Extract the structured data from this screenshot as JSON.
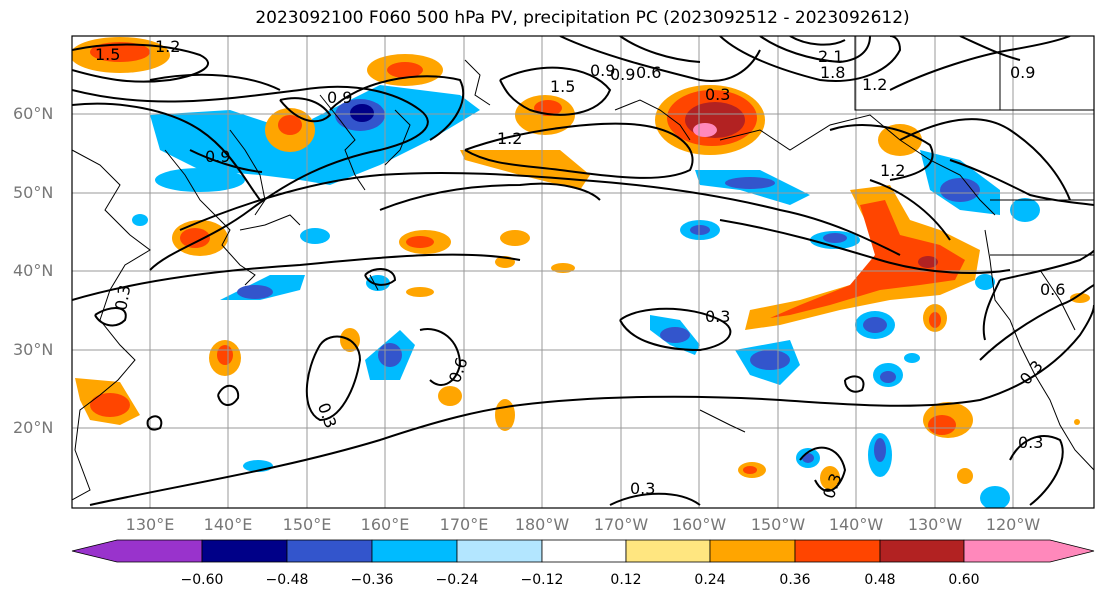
{
  "title": "2023092100 F060 500 hPa PV, precipitation PC (2023092512 - 2023092612)",
  "lat_labels": [
    "60°N",
    "50°N",
    "40°N",
    "30°N",
    "20°N"
  ],
  "lon_labels": [
    "130°E",
    "140°E",
    "150°E",
    "160°E",
    "170°E",
    "180°W",
    "170°W",
    "160°W",
    "150°W",
    "140°W",
    "130°W",
    "120°W"
  ],
  "colorbar": {
    "ticks": [
      "−0.60",
      "−0.48",
      "−0.36",
      "−0.24",
      "−0.12",
      "0.12",
      "0.24",
      "0.36",
      "0.48",
      "0.60"
    ],
    "colors": [
      "#9933cc",
      "#000088",
      "#3355cc",
      "#00bbff",
      "#b3e6ff",
      "#ffffff",
      "#ffe680",
      "#ffa500",
      "#ff4500",
      "#b22222",
      "#ff88bb"
    ]
  },
  "contour_labels": [
    "1.5",
    "1.2",
    "0.9",
    "1.5",
    "1.2",
    "0.9",
    "0.9",
    "0.3",
    "2.1",
    "1.8",
    "1.2",
    "0.9",
    "1.2",
    "0.6",
    "0.3",
    "0.6",
    "0.3",
    "0.3",
    "0.3",
    "0.3",
    "0.3",
    "0.3",
    "0.6",
    "0.9"
  ]
}
